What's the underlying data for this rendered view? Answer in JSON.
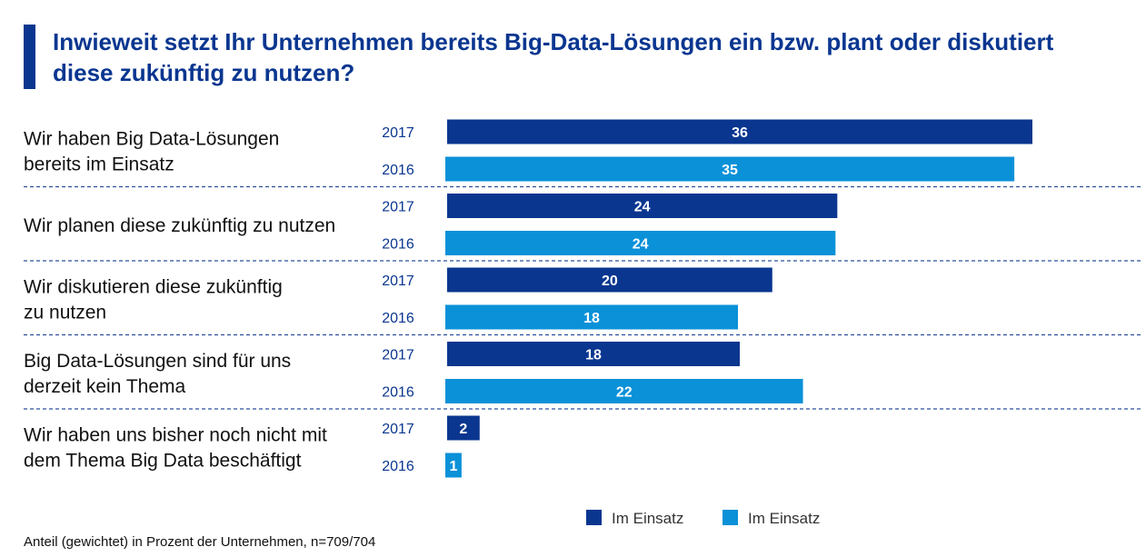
{
  "title": "Inwieweit setzt Ihr Unternehmen bereits Big-Data-Lösungen ein bzw. plant oder diskutiert\ndiese zukünftig zu nutzen?",
  "footnote": "Anteil (gewichtet) in Prozent der Unternehmen, n=709/704",
  "colors": {
    "accent": "#0a3690",
    "series_2017": "#0a3690",
    "series_2016": "#0a91d8",
    "divider": "#2b4f9a"
  },
  "chart_data": {
    "type": "bar",
    "orientation": "horizontal",
    "categories": [
      [
        "Wir haben Big Data-Lösungen",
        "bereits im Einsatz"
      ],
      [
        "Wir planen diese zukünftig zu nutzen"
      ],
      [
        "Wir diskutieren diese zukünftig",
        "zu nutzen"
      ],
      [
        "Big Data-Lösungen sind für uns",
        "derzeit kein Thema"
      ],
      [
        "Wir haben uns bisher noch nicht mit",
        "dem Thema Big Data beschäftigt"
      ]
    ],
    "series": [
      {
        "year": "2017",
        "values": [
          36,
          24,
          20,
          18,
          2
        ]
      },
      {
        "year": "2016",
        "values": [
          35,
          24,
          18,
          22,
          1
        ]
      }
    ],
    "legend": [
      "Im Einsatz",
      "Im Einsatz"
    ],
    "legend_position": "bottom-right",
    "xlim": [
      0,
      40
    ]
  }
}
